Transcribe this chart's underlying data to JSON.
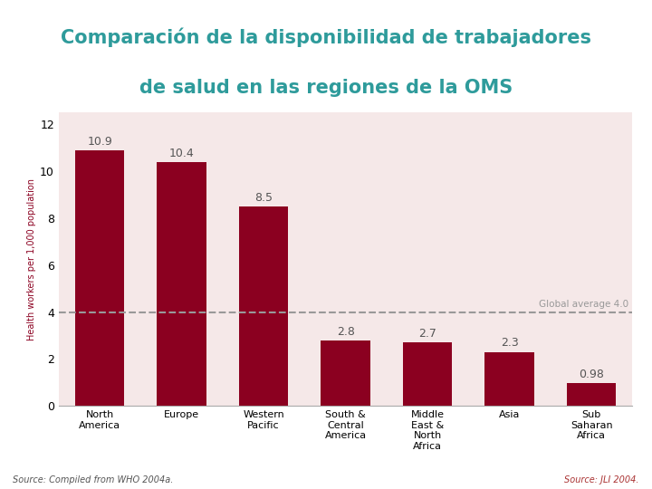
{
  "title_line1": "Comparación de la disponibilidad de trabajadores",
  "title_line2": "de salud en las regiones de la OMS",
  "title_color": "#2E9B9B",
  "title_bg": "#FFFFFF",
  "categories": [
    "North\nAmerica",
    "Europe",
    "Western\nPacific",
    "South &\nCentral\nAmerica",
    "Middle\nEast &\nNorth\nAfrica",
    "Asia",
    "Sub\nSaharan\nAfrica"
  ],
  "values": [
    10.9,
    10.4,
    8.5,
    2.8,
    2.7,
    2.3,
    0.98
  ],
  "bar_color": "#8B0020",
  "ylabel": "Health workers per 1,000 population",
  "ylabel_color": "#8B0020",
  "ylim": [
    0,
    12.5
  ],
  "yticks": [
    0,
    2,
    4,
    6,
    8,
    10,
    12
  ],
  "global_average": 4.0,
  "global_avg_label": "Global average 4.0",
  "source_left": "Source: Compiled from WHO 2004a.",
  "source_right": "Source: JLI 2004.",
  "fig_bg_color": "#FFFFFF",
  "plot_bg_color": "#F5E8E8",
  "dashed_line_color": "#999999",
  "bar_label_color": "#555555",
  "bar_label_fontsize": 9,
  "ylabel_fontsize": 7,
  "ytick_fontsize": 9,
  "xtick_fontsize": 8,
  "title_fontsize": 15
}
